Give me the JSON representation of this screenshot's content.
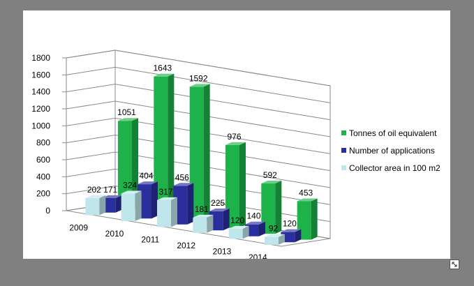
{
  "chart_data": {
    "type": "bar",
    "title": "",
    "xlabel": "",
    "ylabel": "",
    "ylim": [
      0,
      1800
    ],
    "yticks": [
      0,
      200,
      400,
      600,
      800,
      1000,
      1200,
      1400,
      1600,
      1800
    ],
    "categories": [
      "2009",
      "2010",
      "2011",
      "2012",
      "2013",
      "2014"
    ],
    "series": [
      {
        "name": "Collector area in 100 m2",
        "values": [
          202,
          324,
          317,
          181,
          120,
          92
        ],
        "color": "#bfe6ea"
      },
      {
        "name": "Number of applications",
        "values": [
          171,
          404,
          456,
          225,
          140,
          120
        ],
        "color": "#2b2f9e"
      },
      {
        "name": "Tonnes of oil equivalent",
        "values": [
          1051,
          1643,
          1592,
          976,
          592,
          453
        ],
        "color": "#1db34a"
      }
    ],
    "grid": true,
    "legend_position": "right",
    "style": "3d-clustered-column"
  }
}
